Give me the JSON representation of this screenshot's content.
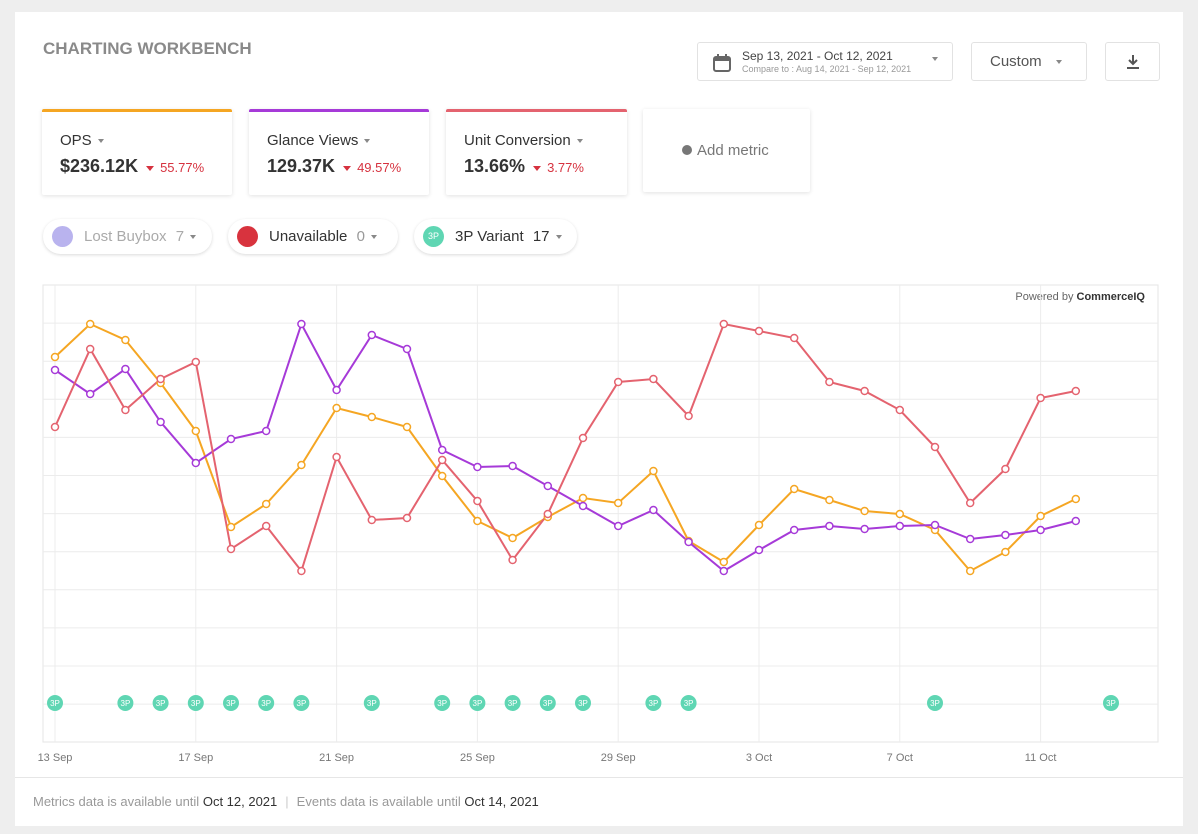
{
  "header": {
    "title": "CHARTING WORKBENCH",
    "date_range": "Sep 13, 2021 - Oct 12, 2021",
    "compare_label": "Compare to :",
    "compare_range": "Aug 14, 2021 - Sep 12, 2021",
    "preset": "Custom"
  },
  "metrics": [
    {
      "name": "OPS",
      "value": "$236.12K",
      "change": "55.77%",
      "color": "#f5a623"
    },
    {
      "name": "Glance Views",
      "value": "129.37K",
      "change": "49.57%",
      "color": "#a63ad8"
    },
    {
      "name": "Unit Conversion",
      "value": "13.66%",
      "change": "3.77%",
      "color": "#e4636f"
    }
  ],
  "add_metric": "Add metric",
  "filters": [
    {
      "name": "Lost Buybox",
      "count": 7
    },
    {
      "name": "Unavailable",
      "count": 0
    },
    {
      "name": "3P Variant",
      "count": 17,
      "icon": "3P"
    }
  ],
  "chart_data": {
    "type": "line",
    "credit_prefix": "Powered by",
    "credit_brand": "CommerceIQ",
    "categories": [
      "13 Sep",
      null,
      null,
      null,
      "17 Sep",
      null,
      null,
      null,
      "21 Sep",
      null,
      null,
      null,
      "25 Sep",
      null,
      null,
      null,
      "29 Sep",
      null,
      null,
      null,
      "3 Oct",
      null,
      null,
      null,
      "7 Oct",
      null,
      null,
      null,
      "11 Oct",
      null,
      null
    ],
    "series": [
      {
        "name": "OPS",
        "color": "#f5a623",
        "values": [
          385,
          418,
          402,
          359,
          311,
          215,
          238,
          277,
          334,
          325,
          315,
          266,
          221,
          204,
          225,
          244,
          239,
          271,
          201,
          180,
          217,
          253,
          242,
          231,
          228,
          212,
          171,
          190,
          226,
          243,
          null
        ]
      },
      {
        "name": "Glance Views",
        "color": "#a63ad8",
        "values": [
          372,
          348,
          373,
          320,
          279,
          303,
          311,
          418,
          352,
          407,
          393,
          292,
          275,
          276,
          256,
          236,
          216,
          232,
          200,
          171,
          192,
          212,
          216,
          213,
          216,
          217,
          203,
          207,
          212,
          221,
          null
        ]
      },
      {
        "name": "Unit Conversion",
        "color": "#e4636f",
        "values": [
          315,
          393,
          332,
          363,
          380,
          193,
          216,
          171,
          285,
          222,
          224,
          282,
          241,
          182,
          228,
          304,
          360,
          363,
          326,
          418,
          411,
          404,
          360,
          351,
          332,
          295,
          239,
          273,
          344,
          351,
          null
        ]
      }
    ],
    "events": [
      "3P",
      null,
      "3P",
      "3P",
      "3P",
      "3P",
      "3P",
      "3P",
      null,
      "3P",
      null,
      "3P",
      "3P",
      "3P",
      "3P",
      "3P",
      null,
      "3P",
      "3P",
      null,
      null,
      null,
      null,
      null,
      null,
      "3P",
      null,
      null,
      null,
      null,
      "3P"
    ],
    "ylim": [
      0,
      457
    ],
    "grid": true
  },
  "footer": {
    "metrics_text": "Metrics data is available until",
    "metrics_date": "Oct 12, 2021",
    "events_text": "Events data is available until",
    "events_date": "Oct 14, 2021"
  }
}
